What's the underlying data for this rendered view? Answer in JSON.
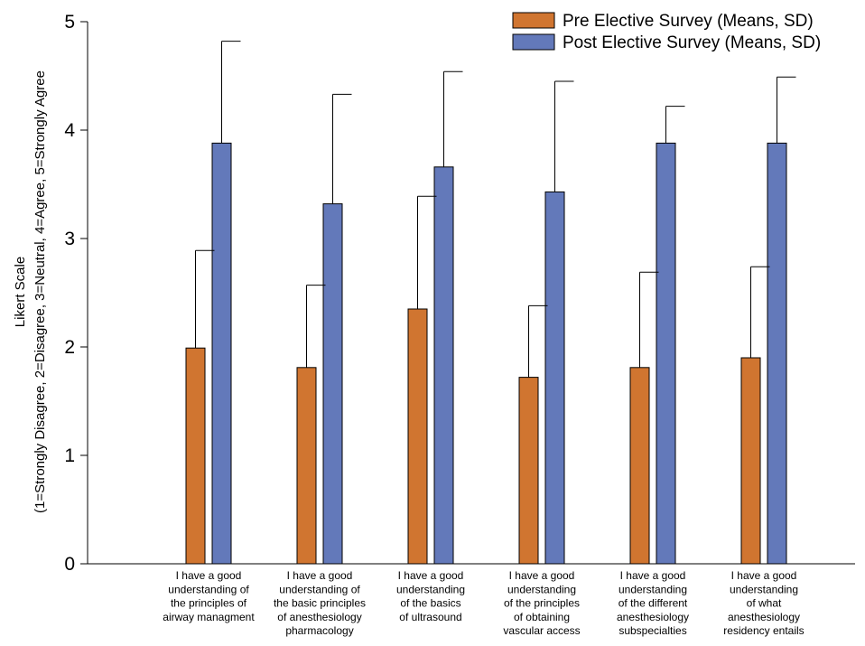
{
  "chart_data": {
    "type": "bar",
    "title": "",
    "ylabel_lines": [
      "Likert Scale",
      "(1=Strongly Disagree, 2=Disagree, 3=Neutral, 4=Agree, 5=Strongly Agree"
    ],
    "xlabel": "",
    "ylim": [
      0,
      5
    ],
    "yticks": [
      "0",
      "1",
      "2",
      "3",
      "4",
      "5"
    ],
    "grid": false,
    "legend_position": "top-right",
    "categories": [
      [
        "I have a good",
        "understanding of",
        "the principles of",
        "airway managment"
      ],
      [
        "I have a good",
        "understanding of",
        "the basic principles",
        "of anesthesiology",
        "pharmacology"
      ],
      [
        "I have a good",
        "understanding",
        "of the basics",
        "of ultrasound"
      ],
      [
        "I have a good",
        "understanding",
        "of the principles",
        "of obtaining",
        "vascular access"
      ],
      [
        "I have a good",
        "understanding",
        "of the different",
        "anesthesiology",
        "subspecialties"
      ],
      [
        "I have a good",
        "understanding",
        "of what",
        "anesthesiology",
        "residency entails"
      ]
    ],
    "series": [
      {
        "name": "Pre Elective Survey (Means, SD)",
        "color": "#D07530",
        "values": [
          1.99,
          1.81,
          2.35,
          1.72,
          1.81,
          1.9
        ],
        "sd": [
          0.9,
          0.76,
          1.04,
          0.66,
          0.88,
          0.84
        ]
      },
      {
        "name": "Post Elective Survey (Means, SD)",
        "color": "#6379BA",
        "values": [
          3.88,
          3.32,
          3.66,
          3.43,
          3.88,
          3.88
        ],
        "sd": [
          0.94,
          1.01,
          0.88,
          1.02,
          0.34,
          0.61
        ]
      }
    ]
  }
}
